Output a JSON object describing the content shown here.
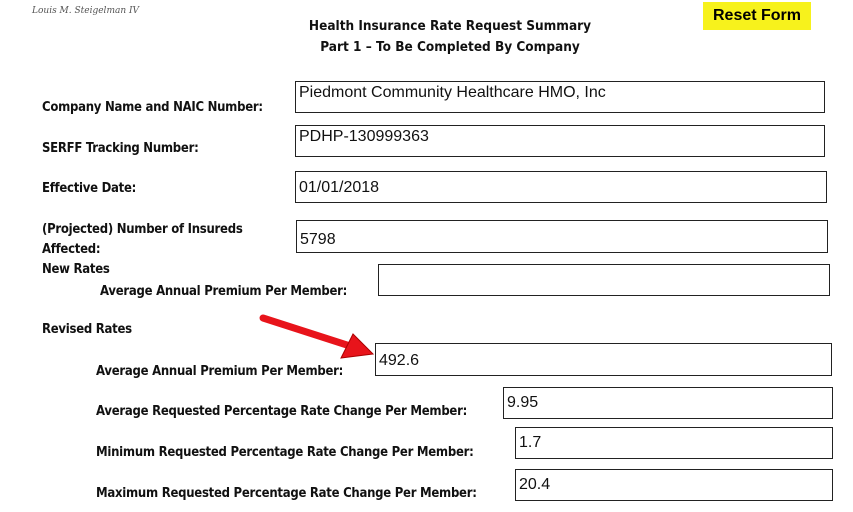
{
  "signature": "Louis M. Steigelman IV",
  "header": {
    "title": "Health Insurance Rate Request Summary",
    "subtitle": "Part 1 – To Be Completed By Company"
  },
  "reset_button": "Reset Form",
  "colors": {
    "reset_bg": "#f7f21c",
    "arrow": "#e8141b"
  },
  "fields": {
    "company": {
      "label": "Company Name and NAIC Number:",
      "value": "Piedmont Community Healthcare HMO, Inc"
    },
    "serff": {
      "label": "SERFF Tracking Number:",
      "value": "PDHP-130999363"
    },
    "effective": {
      "label": "Effective Date:",
      "value": "01/01/2018"
    },
    "insureds": {
      "label1": "(Projected) Number of Insureds",
      "label2": "Affected:",
      "value": "5798"
    },
    "new_rates": {
      "heading": "New Rates",
      "label": "Average Annual Premium Per Member:",
      "value": ""
    },
    "revised_rates": {
      "heading": "Revised Rates"
    },
    "revised_premium": {
      "label": "Average Annual Premium Per Member:",
      "value": "492.6"
    },
    "avg_change": {
      "label": "Average Requested Percentage Rate Change Per Member:",
      "value": "9.95"
    },
    "min_change": {
      "label": "Minimum Requested Percentage Rate Change Per Member:",
      "value": "1.7"
    },
    "max_change": {
      "label": "Maximum Requested Percentage Rate Change Per Member:",
      "value": "20.4"
    }
  }
}
